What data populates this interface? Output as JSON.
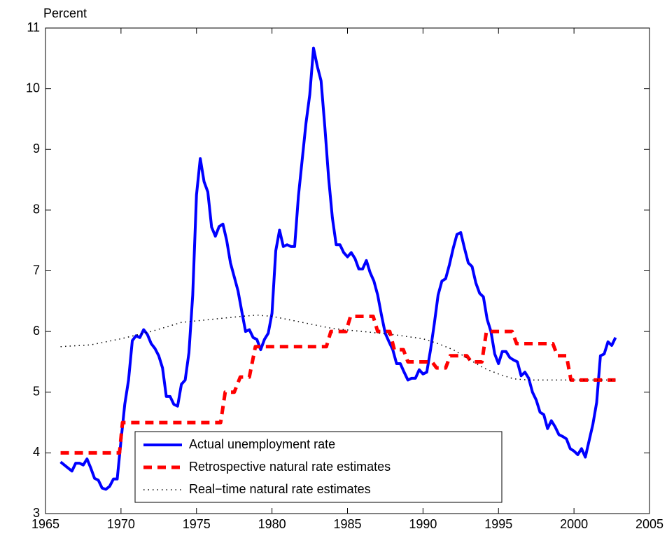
{
  "chart_data": {
    "type": "line",
    "ylabel": "Percent",
    "xlim": [
      1965,
      2005
    ],
    "xticks": [
      1965,
      1970,
      1975,
      1980,
      1985,
      1990,
      1995,
      2000,
      2005
    ],
    "ylim": [
      3,
      11
    ],
    "yticks": [
      3,
      4,
      5,
      6,
      7,
      8,
      9,
      10,
      11
    ],
    "grid": false,
    "legend": "lower center",
    "series": [
      {
        "name": "Actual unemployment rate",
        "color": "#0000ff",
        "style": "solid",
        "x": [
          1966,
          1966.25,
          1966.5,
          1966.75,
          1967,
          1967.25,
          1967.5,
          1967.75,
          1968,
          1968.25,
          1968.5,
          1968.75,
          1969,
          1969.25,
          1969.5,
          1969.75,
          1970,
          1970.25,
          1970.5,
          1970.75,
          1971,
          1971.25,
          1971.5,
          1971.75,
          1972,
          1972.25,
          1972.5,
          1972.75,
          1973,
          1973.25,
          1973.5,
          1973.75,
          1974,
          1974.25,
          1974.5,
          1974.75,
          1975,
          1975.25,
          1975.5,
          1975.75,
          1976,
          1976.25,
          1976.5,
          1976.75,
          1977,
          1977.25,
          1977.5,
          1977.75,
          1978,
          1978.25,
          1978.5,
          1978.75,
          1979,
          1979.25,
          1979.5,
          1979.75,
          1980,
          1980.25,
          1980.5,
          1980.75,
          1981,
          1981.25,
          1981.5,
          1981.75,
          1982,
          1982.25,
          1982.5,
          1982.75,
          1983,
          1983.25,
          1983.5,
          1983.75,
          1984,
          1984.25,
          1984.5,
          1984.75,
          1985,
          1985.25,
          1985.5,
          1985.75,
          1986,
          1986.25,
          1986.5,
          1986.75,
          1987,
          1987.25,
          1987.5,
          1987.75,
          1988,
          1988.25,
          1988.5,
          1988.75,
          1989,
          1989.25,
          1989.5,
          1989.75,
          1990,
          1990.25,
          1990.5,
          1990.75,
          1991,
          1991.25,
          1991.5,
          1991.75,
          1992,
          1992.25,
          1992.5,
          1992.75,
          1993,
          1993.25,
          1993.5,
          1993.75,
          1994,
          1994.25,
          1994.5,
          1994.75,
          1995,
          1995.25,
          1995.5,
          1995.75,
          1996,
          1996.25,
          1996.5,
          1996.75,
          1997,
          1997.25,
          1997.5,
          1997.75,
          1998,
          1998.25,
          1998.5,
          1998.75,
          1999,
          1999.25,
          1999.5,
          1999.75,
          2000,
          2000.25,
          2000.5,
          2000.75,
          2001,
          2001.25,
          2001.5,
          2001.75,
          2002,
          2002.25,
          2002.5,
          2002.75
        ],
        "values": [
          3.85,
          3.8,
          3.75,
          3.7,
          3.83,
          3.83,
          3.8,
          3.9,
          3.75,
          3.58,
          3.55,
          3.42,
          3.4,
          3.45,
          3.57,
          3.57,
          4.2,
          4.8,
          5.2,
          5.85,
          5.93,
          5.9,
          6.03,
          5.95,
          5.8,
          5.72,
          5.6,
          5.4,
          4.93,
          4.93,
          4.8,
          4.77,
          5.13,
          5.2,
          5.65,
          6.6,
          8.25,
          8.85,
          8.47,
          8.3,
          7.72,
          7.57,
          7.73,
          7.77,
          7.5,
          7.13,
          6.9,
          6.67,
          6.33,
          6.0,
          6.03,
          5.9,
          5.87,
          5.7,
          5.87,
          5.97,
          6.3,
          7.33,
          7.67,
          7.4,
          7.43,
          7.4,
          7.4,
          8.23,
          8.83,
          9.43,
          9.9,
          10.67,
          10.37,
          10.13,
          9.37,
          8.53,
          7.87,
          7.43,
          7.43,
          7.3,
          7.23,
          7.3,
          7.2,
          7.03,
          7.03,
          7.17,
          6.97,
          6.83,
          6.6,
          6.27,
          5.97,
          5.83,
          5.7,
          5.47,
          5.47,
          5.33,
          5.2,
          5.23,
          5.23,
          5.37,
          5.3,
          5.33,
          5.7,
          6.13,
          6.6,
          6.83,
          6.87,
          7.1,
          7.37,
          7.6,
          7.63,
          7.37,
          7.13,
          7.07,
          6.8,
          6.63,
          6.57,
          6.2,
          6.0,
          5.63,
          5.47,
          5.67,
          5.67,
          5.57,
          5.53,
          5.5,
          5.27,
          5.33,
          5.23,
          5.0,
          4.87,
          4.67,
          4.63,
          4.4,
          4.53,
          4.43,
          4.3,
          4.27,
          4.23,
          4.07,
          4.03,
          3.97,
          4.07,
          3.93,
          4.2,
          4.47,
          4.83,
          5.6,
          5.63,
          5.83,
          5.77,
          5.9
        ]
      },
      {
        "name": "Retrospective natural rate estimates",
        "color": "#ff0000",
        "style": "dashed",
        "x": [
          1966,
          1969.9,
          1970.1,
          1976.6,
          1976.9,
          1977.5,
          1977.9,
          1978.5,
          1978.9,
          1983.6,
          1983.9,
          1984.9,
          1985.2,
          1986.7,
          1987.0,
          1987.8,
          1988.1,
          1988.7,
          1989.0,
          1990.6,
          1990.9,
          1991.5,
          1991.8,
          1992.9,
          1993.2,
          1993.9,
          1994.2,
          1995.9,
          1996.2,
          1998.6,
          1998.9,
          1999.5,
          1999.8,
          2002.75
        ],
        "values": [
          4.0,
          4.0,
          4.5,
          4.5,
          5.0,
          5.0,
          5.25,
          5.25,
          5.75,
          5.75,
          6.0,
          6.0,
          6.25,
          6.25,
          6.0,
          6.0,
          5.7,
          5.7,
          5.5,
          5.5,
          5.4,
          5.4,
          5.6,
          5.6,
          5.5,
          5.5,
          6.0,
          6.0,
          5.8,
          5.8,
          5.6,
          5.6,
          5.2,
          5.2
        ]
      },
      {
        "name": "Real−time natural rate estimates",
        "color": "#000000",
        "style": "dotted",
        "x": [
          1966,
          1968,
          1970,
          1972,
          1974,
          1976,
          1978,
          1979,
          1980,
          1982,
          1984,
          1986,
          1988,
          1990,
          1991,
          1992,
          1993,
          1994,
          1995,
          1996,
          1997,
          1999,
          2002.75
        ],
        "values": [
          5.75,
          5.78,
          5.88,
          6.0,
          6.15,
          6.2,
          6.25,
          6.27,
          6.25,
          6.15,
          6.05,
          6.0,
          5.95,
          5.88,
          5.8,
          5.7,
          5.55,
          5.4,
          5.3,
          5.22,
          5.2,
          5.2,
          5.2
        ]
      }
    ]
  }
}
